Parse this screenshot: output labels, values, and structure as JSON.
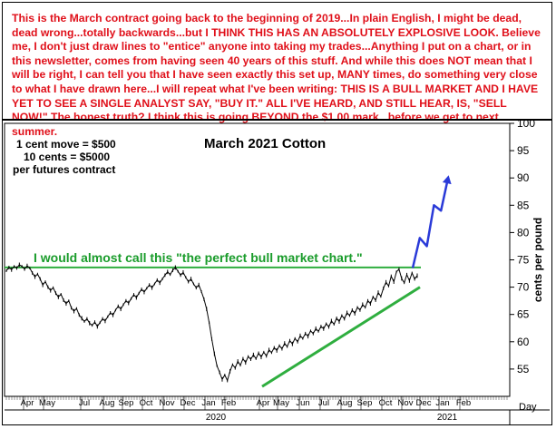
{
  "commentary": "This is the March contract going back to the beginning of 2019...In plain English, I might be dead, dead wrong...totally backwards...but I THINK THIS HAS AN ABSOLUTELY EXPLOSIVE LOOK. Believe me, I don't just draw lines to \"entice\" anyone into taking my trades...Anything I put on a chart, or in this newsletter, comes from having seen 40 years of this stuff. And while this does NOT mean that I will be right, I can tell you that I have seen exactly this set up, MANY times, do something very close to what I have drawn here...I will repeat what I've been writing: THIS IS A BULL MARKET AND I HAVE YET TO SEE A SINGLE ANALYST SAY, \"BUY IT.\" ALL I'VE HEARD, AND STILL HEAR, IS, \"SELL NOW!\" The honest truth? I think this is going BEYOND the $1.00 mark...before we get to next summer.",
  "notes": {
    "line1": "1 cent move = $500",
    "line2": "10 cents = $5000",
    "line3": "per futures contract"
  },
  "colors": {
    "text_red": "#e0101a",
    "price": "#000000",
    "trendline": "#2fae3f",
    "resistance": "#2fae3f",
    "projection": "#2a3ad8",
    "annotation": "#1a9c2b"
  },
  "chart_data": {
    "type": "line",
    "title": "March 2021 Cotton",
    "ylabel": "cents per pound",
    "xlabel": "",
    "ylim": [
      50,
      100
    ],
    "yticks": [
      55,
      60,
      65,
      70,
      75,
      80,
      85,
      90,
      95,
      100
    ],
    "grid": false,
    "month_labels": [
      "Apr",
      "May",
      "Jul",
      "Aug",
      "Sep",
      "Oct",
      "Nov",
      "Dec",
      "Jan",
      "Feb",
      "Apr",
      "May",
      "Jun",
      "Jul",
      "Aug",
      "Sep",
      "Oct",
      "Nov",
      "Dec",
      "Jan",
      "Feb"
    ],
    "year_labels": [
      "2020",
      "2021"
    ],
    "corner_label": "Day",
    "annotation": "I would almost call this \"the perfect bull market chart.\"",
    "series": [
      {
        "values": [
          73.0,
          73.6,
          73.2,
          73.8,
          73.5,
          74.1,
          73.8,
          73.3,
          73.9,
          73.5,
          72.6,
          71.9,
          72.4,
          71.5,
          70.4,
          71.0,
          70.0,
          69.4,
          69.9,
          68.9,
          68.2,
          68.7,
          67.6,
          67.0,
          67.5,
          66.2,
          65.6,
          66.1,
          64.9,
          64.3,
          63.7,
          64.2,
          63.4,
          63.0,
          63.6,
          62.8,
          63.5,
          64.2,
          63.8,
          64.6,
          65.3,
          64.9,
          65.8,
          66.5,
          66.0,
          66.8,
          67.5,
          67.1,
          67.9,
          68.6,
          68.1,
          68.9,
          69.6,
          69.1,
          69.8,
          70.4,
          69.9,
          70.6,
          71.3,
          70.8,
          71.5,
          72.2,
          72.8,
          72.3,
          73.1,
          73.6,
          72.9,
          72.2,
          72.7,
          71.8,
          71.0,
          71.5,
          70.6,
          69.9,
          70.4,
          69.2,
          67.8,
          66.0,
          63.5,
          60.5,
          57.8,
          55.6,
          54.4,
          53.1,
          53.9,
          52.9,
          54.6,
          55.8,
          55.2,
          56.4,
          55.7,
          56.9,
          56.2,
          57.3,
          56.8,
          57.6,
          56.9,
          57.9,
          57.2,
          58.1,
          57.4,
          58.5,
          58.0,
          58.9,
          58.4,
          59.3,
          58.7,
          59.7,
          59.1,
          60.2,
          59.6,
          60.6,
          60.0,
          61.1,
          60.6,
          61.5,
          61.0,
          62.0,
          61.5,
          62.4,
          61.9,
          62.8,
          62.4,
          63.3,
          62.7,
          63.8,
          63.2,
          64.3,
          63.7,
          64.8,
          64.2,
          65.3,
          64.8,
          65.8,
          65.2,
          66.3,
          65.8,
          66.8,
          66.3,
          67.5,
          67.0,
          68.2,
          67.6,
          69.0,
          68.3,
          69.8,
          70.9,
          70.2,
          72.0,
          71.0,
          72.8,
          73.3,
          71.6,
          70.8,
          72.3,
          71.2,
          72.6,
          71.5,
          72.1
        ]
      },
      {
        "name": "projection",
        "values": [
          73.5,
          79.0,
          77.5,
          85.0,
          84.0,
          90.0
        ]
      }
    ],
    "trendline": {
      "from_value": 51.8,
      "to_value": 70.0
    },
    "resistance": {
      "value": 73.6
    }
  }
}
